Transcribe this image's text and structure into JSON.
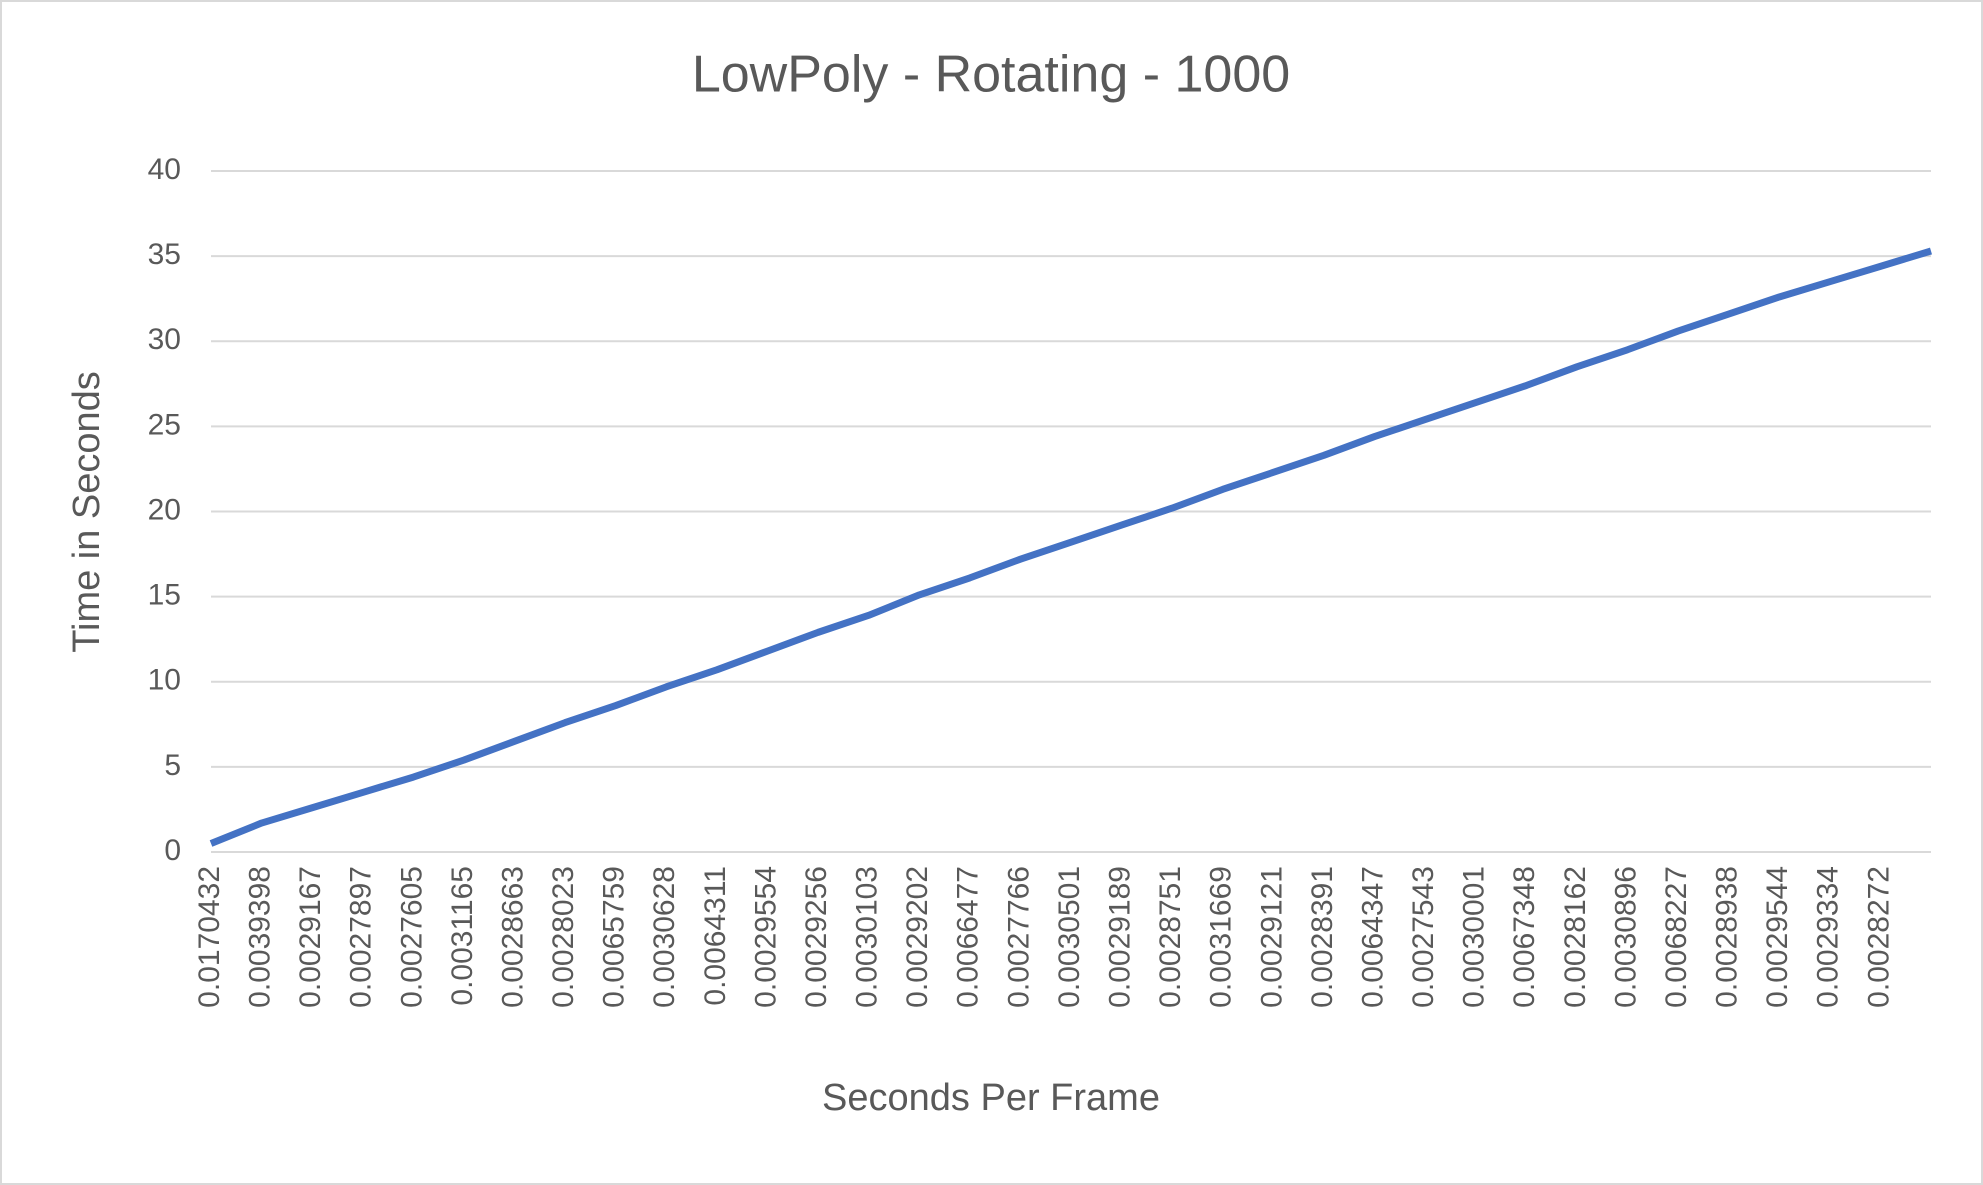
{
  "chart_data": {
    "type": "line",
    "title": "LowPoly - Rotating - 1000",
    "x_label": "Seconds Per Frame",
    "y_label": "Time in Seconds",
    "categories": [
      "0.0170432",
      "0.0039398",
      "0.0029167",
      "0.0027897",
      "0.0027605",
      "0.0031165",
      "0.0028663",
      "0.0028023",
      "0.0065759",
      "0.0030628",
      "0.0064311",
      "0.0029554",
      "0.0029256",
      "0.0030103",
      "0.0029202",
      "0.0066477",
      "0.0027766",
      "0.0030501",
      "0.0029189",
      "0.0028751",
      "0.0031669",
      "0.0029121",
      "0.0028391",
      "0.0064347",
      "0.0027543",
      "0.0030001",
      "0.0067348",
      "0.0028162",
      "0.0030896",
      "0.0068227",
      "0.0028938",
      "0.0029544",
      "0.0029334",
      "0.0028272",
      null
    ],
    "series": [
      {
        "color": "#4472c4",
        "values": [
          0.5,
          1.7,
          2.6,
          3.5,
          4.4,
          5.4,
          6.5,
          7.6,
          8.6,
          9.7,
          10.7,
          11.8,
          12.9,
          13.9,
          15.1,
          16.1,
          17.2,
          18.2,
          19.2,
          20.2,
          21.3,
          22.3,
          23.3,
          24.4,
          25.4,
          26.4,
          27.4,
          28.5,
          29.5,
          30.6,
          31.6,
          32.6,
          33.5,
          34.4,
          35.3
        ]
      }
    ],
    "ylim": [
      0,
      40
    ],
    "yticks": [
      0,
      5,
      10,
      15,
      20,
      25,
      30,
      35,
      40
    ],
    "grid": true
  }
}
